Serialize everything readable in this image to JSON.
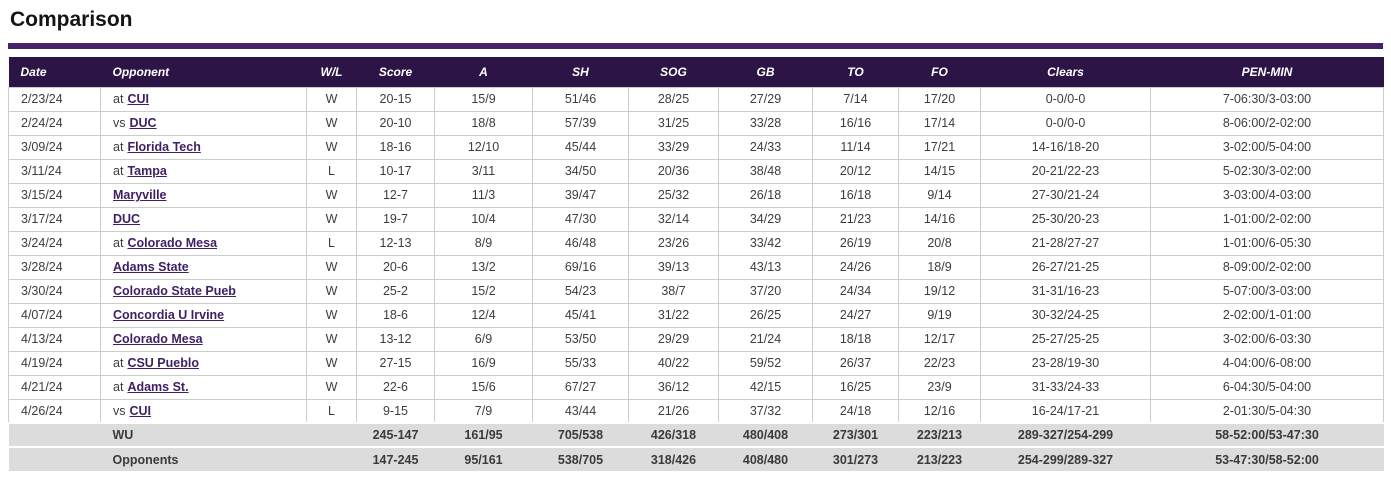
{
  "page": {
    "title": "Comparison"
  },
  "colors": {
    "accent_bar": "#46236b",
    "header_bg": "#2d1446",
    "header_text": "#ffffff",
    "link": "#3f1f63",
    "totals_bg": "#dcdcdc",
    "row_border": "#cccccc"
  },
  "table": {
    "columns": [
      {
        "key": "date",
        "label": "Date",
        "align": "left"
      },
      {
        "key": "opponent",
        "label": "Opponent",
        "align": "left"
      },
      {
        "key": "wl",
        "label": "W/L",
        "align": "center"
      },
      {
        "key": "score",
        "label": "Score",
        "align": "center"
      },
      {
        "key": "a",
        "label": "A",
        "align": "center"
      },
      {
        "key": "sh",
        "label": "SH",
        "align": "center"
      },
      {
        "key": "sog",
        "label": "SOG",
        "align": "center"
      },
      {
        "key": "gb",
        "label": "GB",
        "align": "center"
      },
      {
        "key": "to",
        "label": "TO",
        "align": "center"
      },
      {
        "key": "fo",
        "label": "FO",
        "align": "center"
      },
      {
        "key": "clears",
        "label": "Clears",
        "align": "center"
      },
      {
        "key": "pen",
        "label": "PEN-MIN",
        "align": "center"
      }
    ],
    "rows": [
      {
        "date": "2/23/24",
        "prefix": "at",
        "opponent": "CUI",
        "wl": "W",
        "score": "20-15",
        "a": "15/9",
        "sh": "51/46",
        "sog": "28/25",
        "gb": "27/29",
        "to": "7/14",
        "fo": "17/20",
        "clears": "0-0/0-0",
        "pen": "7-06:30/3-03:00"
      },
      {
        "date": "2/24/24",
        "prefix": "vs",
        "opponent": "DUC",
        "wl": "W",
        "score": "20-10",
        "a": "18/8",
        "sh": "57/39",
        "sog": "31/25",
        "gb": "33/28",
        "to": "16/16",
        "fo": "17/14",
        "clears": "0-0/0-0",
        "pen": "8-06:00/2-02:00"
      },
      {
        "date": "3/09/24",
        "prefix": "at",
        "opponent": "Florida Tech",
        "wl": "W",
        "score": "18-16",
        "a": "12/10",
        "sh": "45/44",
        "sog": "33/29",
        "gb": "24/33",
        "to": "11/14",
        "fo": "17/21",
        "clears": "14-16/18-20",
        "pen": "3-02:00/5-04:00"
      },
      {
        "date": "3/11/24",
        "prefix": "at",
        "opponent": "Tampa",
        "wl": "L",
        "score": "10-17",
        "a": "3/11",
        "sh": "34/50",
        "sog": "20/36",
        "gb": "38/48",
        "to": "20/12",
        "fo": "14/15",
        "clears": "20-21/22-23",
        "pen": "5-02:30/3-02:00"
      },
      {
        "date": "3/15/24",
        "prefix": "",
        "opponent": "Maryville",
        "wl": "W",
        "score": "12-7",
        "a": "11/3",
        "sh": "39/47",
        "sog": "25/32",
        "gb": "26/18",
        "to": "16/18",
        "fo": "9/14",
        "clears": "27-30/21-24",
        "pen": "3-03:00/4-03:00"
      },
      {
        "date": "3/17/24",
        "prefix": "",
        "opponent": "DUC",
        "wl": "W",
        "score": "19-7",
        "a": "10/4",
        "sh": "47/30",
        "sog": "32/14",
        "gb": "34/29",
        "to": "21/23",
        "fo": "14/16",
        "clears": "25-30/20-23",
        "pen": "1-01:00/2-02:00"
      },
      {
        "date": "3/24/24",
        "prefix": "at",
        "opponent": "Colorado Mesa",
        "wl": "L",
        "score": "12-13",
        "a": "8/9",
        "sh": "46/48",
        "sog": "23/26",
        "gb": "33/42",
        "to": "26/19",
        "fo": "20/8",
        "clears": "21-28/27-27",
        "pen": "1-01:00/6-05:30"
      },
      {
        "date": "3/28/24",
        "prefix": "",
        "opponent": "Adams State",
        "wl": "W",
        "score": "20-6",
        "a": "13/2",
        "sh": "69/16",
        "sog": "39/13",
        "gb": "43/13",
        "to": "24/26",
        "fo": "18/9",
        "clears": "26-27/21-25",
        "pen": "8-09:00/2-02:00"
      },
      {
        "date": "3/30/24",
        "prefix": "",
        "opponent": "Colorado State Pueb",
        "wl": "W",
        "score": "25-2",
        "a": "15/2",
        "sh": "54/23",
        "sog": "38/7",
        "gb": "37/20",
        "to": "24/34",
        "fo": "19/12",
        "clears": "31-31/16-23",
        "pen": "5-07:00/3-03:00"
      },
      {
        "date": "4/07/24",
        "prefix": "",
        "opponent": "Concordia U Irvine",
        "wl": "W",
        "score": "18-6",
        "a": "12/4",
        "sh": "45/41",
        "sog": "31/22",
        "gb": "26/25",
        "to": "24/27",
        "fo": "9/19",
        "clears": "30-32/24-25",
        "pen": "2-02:00/1-01:00"
      },
      {
        "date": "4/13/24",
        "prefix": "",
        "opponent": "Colorado Mesa",
        "wl": "W",
        "score": "13-12",
        "a": "6/9",
        "sh": "53/50",
        "sog": "29/29",
        "gb": "21/24",
        "to": "18/18",
        "fo": "12/17",
        "clears": "25-27/25-25",
        "pen": "3-02:00/6-03:30"
      },
      {
        "date": "4/19/24",
        "prefix": "at",
        "opponent": "CSU Pueblo",
        "wl": "W",
        "score": "27-15",
        "a": "16/9",
        "sh": "55/33",
        "sog": "40/22",
        "gb": "59/52",
        "to": "26/37",
        "fo": "22/23",
        "clears": "23-28/19-30",
        "pen": "4-04:00/6-08:00"
      },
      {
        "date": "4/21/24",
        "prefix": "at",
        "opponent": "Adams St.",
        "wl": "W",
        "score": "22-6",
        "a": "15/6",
        "sh": "67/27",
        "sog": "36/12",
        "gb": "42/15",
        "to": "16/25",
        "fo": "23/9",
        "clears": "31-33/24-33",
        "pen": "6-04:30/5-04:00"
      },
      {
        "date": "4/26/24",
        "prefix": "vs",
        "opponent": "CUI",
        "wl": "L",
        "score": "9-15",
        "a": "7/9",
        "sh": "43/44",
        "sog": "21/26",
        "gb": "37/32",
        "to": "24/18",
        "fo": "12/16",
        "clears": "16-24/17-21",
        "pen": "2-01:30/5-04:30"
      }
    ],
    "totals": [
      {
        "label": "WU",
        "score": "245-147",
        "a": "161/95",
        "sh": "705/538",
        "sog": "426/318",
        "gb": "480/408",
        "to": "273/301",
        "fo": "223/213",
        "clears": "289-327/254-299",
        "pen": "58-52:00/53-47:30"
      },
      {
        "label": "Opponents",
        "score": "147-245",
        "a": "95/161",
        "sh": "538/705",
        "sog": "318/426",
        "gb": "408/480",
        "to": "301/273",
        "fo": "213/223",
        "clears": "254-299/289-327",
        "pen": "53-47:30/58-52:00"
      }
    ]
  }
}
